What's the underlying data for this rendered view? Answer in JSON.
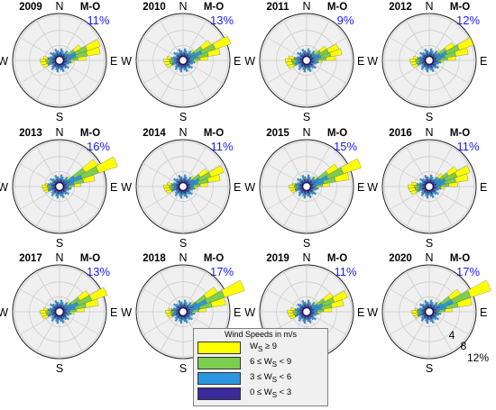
{
  "chart_data": {
    "type": "polar-histogram",
    "legend": {
      "title": "Wind Speeds in m/s",
      "bins": [
        {
          "label_parts": [
            "W",
            "S",
            " ≥ 9"
          ],
          "color": "#ffff00"
        },
        {
          "label_parts": [
            "6 ≤ W",
            "S",
            " < 9"
          ],
          "color": "#7ccd50"
        },
        {
          "label_parts": [
            "3 ≤ W",
            "S",
            " < 6"
          ],
          "color": "#2a96e0"
        },
        {
          "label_parts": [
            "0 ≤ W",
            "S",
            " < 3"
          ],
          "color": "#3a2a9a"
        }
      ],
      "placement": "bottom-center"
    },
    "direction_labels": {
      "north": "N",
      "east": "E",
      "south": "S",
      "west": "W"
    },
    "ring_labels": [
      "4",
      "8",
      "12%"
    ],
    "ring_values": [
      4,
      8,
      12
    ],
    "panels": [
      {
        "year": "2009",
        "subtitle": "M-O",
        "max_label": "11%",
        "max": 11,
        "shape": [
          3.0,
          6.5,
          10.5,
          11.0,
          6.0,
          2.5
        ]
      },
      {
        "year": "2010",
        "subtitle": "M-O",
        "max_label": "13%",
        "max": 13,
        "shape": [
          3.0,
          6.0,
          9.5,
          13.0,
          8.0,
          3.0
        ]
      },
      {
        "year": "2011",
        "subtitle": "M-O",
        "max_label": "9%",
        "max": 9,
        "shape": [
          3.5,
          7.0,
          9.0,
          8.5,
          5.5,
          3.0
        ]
      },
      {
        "year": "2012",
        "subtitle": "M-O",
        "max_label": "12%",
        "max": 12,
        "shape": [
          3.0,
          6.5,
          10.0,
          12.0,
          7.0,
          3.0
        ]
      },
      {
        "year": "2013",
        "subtitle": "M-O",
        "max_label": "16%",
        "max": 16,
        "shape": [
          2.5,
          5.0,
          9.0,
          16.0,
          11.0,
          3.0
        ]
      },
      {
        "year": "2014",
        "subtitle": "M-O",
        "max_label": "11%",
        "max": 11,
        "shape": [
          3.0,
          6.0,
          9.5,
          11.0,
          7.0,
          3.0
        ]
      },
      {
        "year": "2015",
        "subtitle": "M-O",
        "max_label": "15%",
        "max": 15,
        "shape": [
          2.5,
          5.5,
          11.0,
          15.0,
          9.0,
          3.0
        ]
      },
      {
        "year": "2016",
        "subtitle": "M-O",
        "max_label": "11%",
        "max": 11,
        "shape": [
          3.5,
          7.0,
          10.0,
          11.0,
          8.0,
          4.0
        ]
      },
      {
        "year": "2017",
        "subtitle": "M-O",
        "max_label": "13%",
        "max": 13,
        "shape": [
          3.0,
          6.0,
          10.0,
          13.0,
          8.5,
          3.0
        ]
      },
      {
        "year": "2018",
        "subtitle": "M-O",
        "max_label": "17%",
        "max": 17,
        "shape": [
          2.5,
          5.5,
          11.0,
          17.0,
          10.0,
          3.0
        ]
      },
      {
        "year": "2019",
        "subtitle": "M-O",
        "max_label": "11%",
        "max": 11,
        "shape": [
          3.0,
          6.0,
          9.5,
          11.0,
          7.5,
          3.0
        ]
      },
      {
        "year": "2020",
        "subtitle": "M-O",
        "max_label": "17%",
        "max": 17,
        "shape": [
          2.5,
          5.5,
          11.0,
          17.0,
          9.0,
          3.0
        ]
      }
    ]
  }
}
